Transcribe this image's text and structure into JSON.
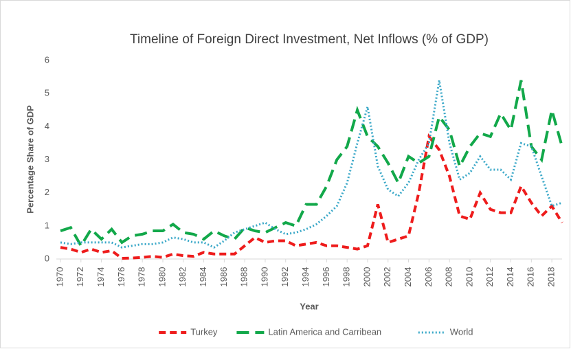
{
  "chart_data": {
    "type": "line",
    "title": "Timeline of Foreign Direct Investment, Net Inflows (% of GDP)",
    "x_label": "Year",
    "y_label": "Percentage Share of GDP",
    "x": [
      1970,
      1971,
      1972,
      1973,
      1974,
      1975,
      1976,
      1977,
      1978,
      1979,
      1980,
      1981,
      1982,
      1983,
      1984,
      1985,
      1986,
      1987,
      1988,
      1989,
      1990,
      1991,
      1992,
      1993,
      1994,
      1995,
      1996,
      1997,
      1998,
      1999,
      2000,
      2001,
      2002,
      2003,
      2004,
      2005,
      2006,
      2007,
      2008,
      2009,
      2010,
      2011,
      2012,
      2013,
      2014,
      2015,
      2016,
      2017,
      2018,
      2019
    ],
    "xlim": [
      1970,
      2019
    ],
    "xticks": [
      1970,
      1972,
      1974,
      1976,
      1978,
      1980,
      1982,
      1984,
      1986,
      1988,
      1990,
      1992,
      1994,
      1996,
      1998,
      2000,
      2002,
      2004,
      2006,
      2008,
      2010,
      2012,
      2014,
      2016,
      2018
    ],
    "ylim": [
      0,
      6
    ],
    "yticks": [
      0,
      1,
      2,
      3,
      4,
      5,
      6
    ],
    "legend": "bottom",
    "series": [
      {
        "name": "Turkey",
        "color": "#ee1c1c",
        "dash": "dashed",
        "values": [
          0.35,
          0.3,
          0.2,
          0.3,
          0.2,
          0.25,
          0.02,
          0.03,
          0.05,
          0.08,
          0.05,
          0.15,
          0.1,
          0.08,
          0.2,
          0.15,
          0.15,
          0.15,
          0.4,
          0.65,
          0.5,
          0.55,
          0.55,
          0.4,
          0.45,
          0.5,
          0.4,
          0.4,
          0.35,
          0.3,
          0.4,
          1.65,
          0.5,
          0.6,
          0.7,
          2.0,
          3.7,
          3.3,
          2.5,
          1.3,
          1.2,
          2.0,
          1.5,
          1.4,
          1.4,
          2.2,
          1.7,
          1.3,
          1.6,
          1.1
        ]
      },
      {
        "name": "Latin America and Carribean",
        "color": "#12a84a",
        "dash": "long-dashed",
        "values": [
          0.85,
          0.95,
          0.4,
          0.9,
          0.6,
          0.9,
          0.5,
          0.7,
          0.75,
          0.85,
          0.85,
          1.05,
          0.8,
          0.75,
          0.6,
          0.85,
          0.7,
          0.6,
          0.95,
          0.85,
          0.8,
          0.95,
          1.1,
          1.0,
          1.65,
          1.65,
          2.2,
          3.0,
          3.4,
          4.5,
          3.7,
          3.4,
          2.9,
          2.3,
          3.1,
          2.9,
          3.1,
          4.3,
          3.9,
          2.8,
          3.4,
          3.8,
          3.7,
          4.4,
          3.9,
          5.4,
          3.4,
          3.0,
          4.5,
          3.4
        ]
      },
      {
        "name": "World",
        "color": "#3aa8c8",
        "dash": "dotted",
        "values": [
          0.5,
          0.45,
          0.5,
          0.5,
          0.5,
          0.5,
          0.35,
          0.4,
          0.45,
          0.45,
          0.5,
          0.65,
          0.6,
          0.5,
          0.5,
          0.35,
          0.55,
          0.8,
          0.9,
          1.0,
          1.1,
          0.9,
          0.75,
          0.8,
          0.9,
          1.05,
          1.3,
          1.6,
          2.3,
          3.5,
          4.6,
          2.8,
          2.1,
          1.9,
          2.3,
          3.0,
          3.5,
          5.4,
          3.5,
          2.4,
          2.6,
          3.1,
          2.7,
          2.7,
          2.4,
          3.5,
          3.4,
          2.5,
          1.6,
          1.7
        ]
      }
    ]
  }
}
